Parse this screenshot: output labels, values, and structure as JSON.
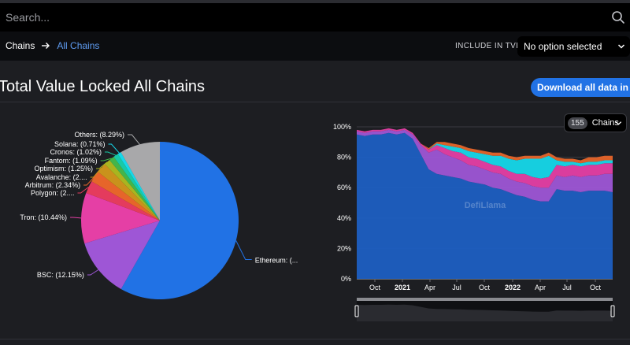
{
  "search": {
    "placeholder": "Search..."
  },
  "breadcrumb": {
    "root": "Chains",
    "current": "All Chains"
  },
  "tvl_filter": {
    "label": "INCLUDE IN TVL:",
    "selected": "No option selected"
  },
  "page": {
    "title": "Total Value Locked All Chains",
    "download_label": "Download all data in .csv"
  },
  "chains_selector": {
    "count": "155",
    "label": "Chains"
  },
  "watermark": "DefiLlama",
  "colors": {
    "background": "#1d1e22",
    "accent": "#2172e5",
    "link": "#5e9bf0"
  },
  "chart_data": [
    {
      "type": "pie",
      "slices": [
        {
          "name": "Ethereum",
          "label": "Ethereum: (...",
          "value": 58.5,
          "color": "#2172e5"
        },
        {
          "name": "BSC",
          "label": "BSC: (12.15%)",
          "value": 12.15,
          "color": "#9e56d6"
        },
        {
          "name": "Tron",
          "label": "Tron: (10.44%)",
          "value": 10.44,
          "color": "#e53fa5"
        },
        {
          "name": "Polygon",
          "label": "Polygon: (2....",
          "value": 2.6,
          "color": "#e43b5d"
        },
        {
          "name": "Arbitrum",
          "label": "Arbitrum: (2.34%)",
          "value": 2.34,
          "color": "#e6652a"
        },
        {
          "name": "Avalanche",
          "label": "Avalanche: (2....",
          "value": 2.1,
          "color": "#c9921c"
        },
        {
          "name": "Optimism",
          "label": "Optimism: (1.25%)",
          "value": 1.25,
          "color": "#a9b51f"
        },
        {
          "name": "Fantom",
          "label": "Fantom: (1.09%)",
          "value": 1.09,
          "color": "#43b54a"
        },
        {
          "name": "Cronos",
          "label": "Cronos: (1.02%)",
          "value": 1.02,
          "color": "#18c9a7"
        },
        {
          "name": "Solana",
          "label": "Solana: (0.71%)",
          "value": 0.71,
          "color": "#16d8ea"
        },
        {
          "name": "Others",
          "label": "Others: (8.29%)",
          "value": 8.29,
          "color": "#a8a8aa"
        }
      ]
    },
    {
      "type": "area",
      "stacked": "percent",
      "x_tick_labels": [
        "Oct",
        "2021",
        "Apr",
        "Jul",
        "Oct",
        "2022",
        "Apr",
        "Jul",
        "Oct"
      ],
      "y_tick_labels": [
        "0%",
        "20%",
        "40%",
        "60%",
        "80%",
        "100%"
      ],
      "ylim": [
        0,
        100
      ],
      "grid": true,
      "series": [
        {
          "color": "#1e5fc2",
          "values": [
            95,
            94,
            95,
            95,
            96,
            95,
            96,
            92,
            82,
            72,
            69,
            68,
            67,
            66,
            64,
            63,
            62,
            60,
            59,
            57,
            55,
            54,
            52,
            51,
            51,
            59,
            58,
            58,
            57,
            58,
            58,
            58,
            57
          ]
        },
        {
          "color": "#9e56d6",
          "values": [
            2,
            2,
            2,
            2,
            2,
            2,
            2,
            3,
            6,
            11,
            16,
            14,
            13,
            12,
            11,
            11,
            10,
            10,
            10,
            9,
            9,
            9,
            9,
            9,
            9,
            9,
            9,
            10,
            10,
            10,
            10,
            11,
            12
          ]
        },
        {
          "color": "#e53fa5",
          "values": [
            1,
            1,
            1,
            1,
            1,
            1,
            1,
            1,
            1,
            2,
            3,
            4,
            4,
            5,
            5,
            5,
            5,
            5,
            5,
            5,
            5,
            6,
            6,
            6,
            7,
            7,
            7,
            7,
            7,
            7,
            7,
            7,
            7
          ]
        },
        {
          "color": "#16d8ea",
          "values": [
            0,
            0,
            0,
            0,
            0,
            0,
            0,
            0,
            0,
            0,
            1,
            2,
            3,
            3,
            4,
            4,
            5,
            6,
            7,
            8,
            9,
            10,
            12,
            13,
            14,
            3,
            3,
            2,
            2,
            2,
            2,
            2,
            2
          ]
        },
        {
          "color": "#e6652a",
          "values": [
            0,
            0,
            0,
            0,
            0,
            0,
            0,
            0,
            0,
            1,
            1,
            2,
            2,
            2,
            2,
            2,
            2,
            2,
            2,
            2,
            2,
            2,
            2,
            2,
            2,
            2,
            2,
            2,
            2,
            3,
            3,
            3,
            3
          ]
        },
        {
          "color": "#a8a8aa",
          "values": [
            2,
            3,
            2,
            2,
            1,
            2,
            1,
            4,
            11,
            14,
            10,
            10,
            11,
            12,
            14,
            15,
            16,
            17,
            17,
            19,
            20,
            19,
            19,
            19,
            17,
            20,
            21,
            21,
            22,
            20,
            20,
            19,
            19
          ]
        }
      ]
    }
  ]
}
